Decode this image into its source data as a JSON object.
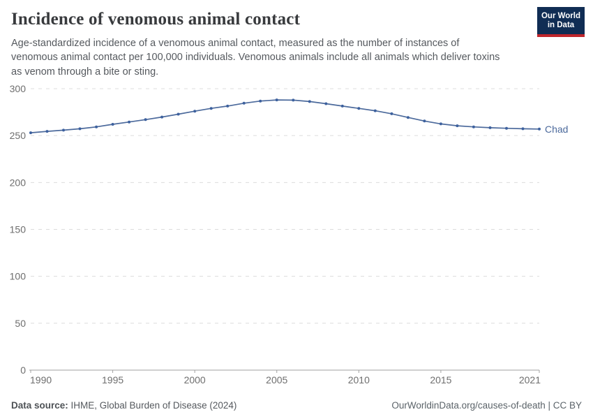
{
  "header": {
    "title": "Incidence of venomous animal contact",
    "subtitle_lines": [
      "Age-standardized incidence of a venomous animal contact, measured as the number of instances of",
      "venomous animal contact per 100,000 individuals. Venomous animals include all animals which deliver toxins",
      "as venom through a bite or sting."
    ]
  },
  "logo": {
    "line1": "Our World",
    "line2": "in Data",
    "bg_color": "#102d54",
    "bar_color": "#c0262c"
  },
  "chart_data": {
    "type": "line",
    "title": "Incidence of venomous animal contact",
    "xlabel": "",
    "ylabel": "",
    "x": [
      1990,
      1991,
      1992,
      1993,
      1994,
      1995,
      1996,
      1997,
      1998,
      1999,
      2000,
      2001,
      2002,
      2003,
      2004,
      2005,
      2006,
      2007,
      2008,
      2009,
      2010,
      2011,
      2012,
      2013,
      2014,
      2015,
      2016,
      2017,
      2018,
      2019,
      2020,
      2021
    ],
    "series": [
      {
        "name": "Chad",
        "color": "#4C6A9C",
        "values": [
          253.0,
          254.5,
          255.8,
          257.3,
          259.3,
          262.0,
          264.5,
          267.0,
          269.8,
          272.8,
          276.0,
          279.0,
          281.5,
          284.5,
          286.8,
          288.0,
          287.8,
          286.3,
          284.0,
          281.5,
          279.0,
          276.5,
          273.3,
          269.3,
          265.5,
          262.5,
          260.5,
          259.3,
          258.4,
          257.8,
          257.3,
          257.0
        ]
      }
    ],
    "ylim": [
      0,
      300
    ],
    "yticks": [
      0,
      50,
      100,
      150,
      200,
      250,
      300
    ],
    "xticks": [
      1990,
      1995,
      2000,
      2005,
      2010,
      2015,
      2021
    ],
    "grid": "dashed-horizontal",
    "legend_position": "end-of-line-label",
    "colors": {
      "gridline": "#dcdcdc",
      "axis": "#a1a1a1",
      "tick_label": "#6e6e6e",
      "marker": "#3d619e"
    }
  },
  "footer": {
    "datasource_label": "Data source:",
    "datasource_value": " IHME, Global Burden of Disease (2024)",
    "attribution": "OurWorldinData.org/causes-of-death | CC BY"
  }
}
